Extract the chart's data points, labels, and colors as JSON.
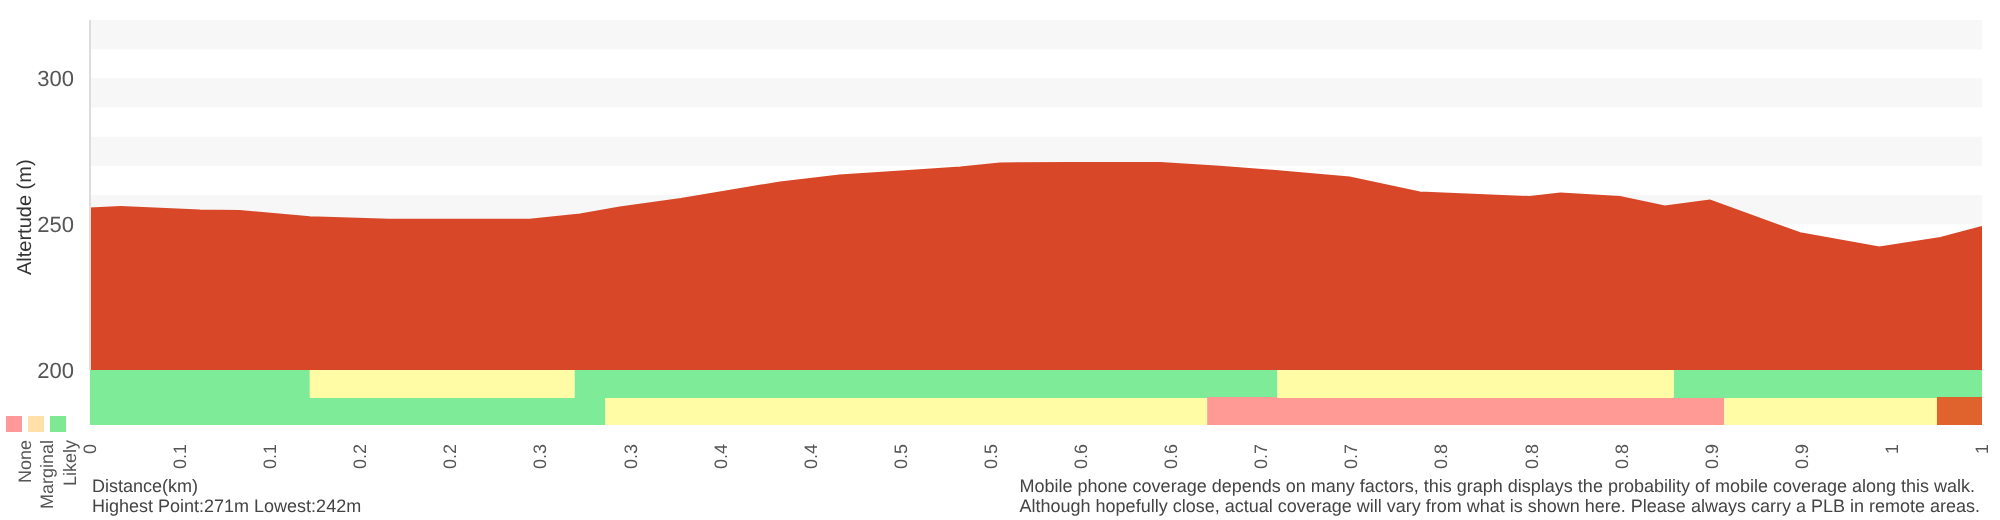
{
  "chart_data": [
    {
      "type": "area",
      "ylabel": "Altertude (m)",
      "xlim": [
        0,
        1.05
      ],
      "ylim": [
        200,
        320
      ],
      "yticks": [
        200,
        250,
        300
      ],
      "tick_labels": "y",
      "grid": false,
      "legend": false,
      "bands": [
        {
          "axis": "y",
          "from": 250,
          "to": 260,
          "color": "#f7f7f7"
        },
        {
          "axis": "y",
          "from": 270,
          "to": 280,
          "color": "#f7f7f7"
        },
        {
          "axis": "y",
          "from": 290,
          "to": 300,
          "color": "#f7f7f7"
        },
        {
          "axis": "y",
          "from": 310,
          "to": 320,
          "color": "#f7f7f7"
        }
      ],
      "x": [
        0,
        0.017,
        0.061,
        0.083,
        0.122,
        0.166,
        0.244,
        0.272,
        0.294,
        0.328,
        0.361,
        0.383,
        0.416,
        0.45,
        0.483,
        0.505,
        0.544,
        0.594,
        0.627,
        0.661,
        0.699,
        0.738,
        0.799,
        0.816,
        0.849,
        0.874,
        0.899,
        0.949,
        0.993,
        1.027,
        1.05
      ],
      "series": [
        {
          "color": "#d84727",
          "values": [
            255.4,
            255.9,
            254.7,
            254.5,
            252.4,
            251.5,
            251.5,
            253.3,
            255.7,
            258.6,
            262.1,
            264.3,
            266.7,
            268.1,
            269.4,
            270.8,
            271,
            271,
            269.7,
            268.1,
            266,
            260.9,
            259.3,
            260.5,
            259.3,
            256.1,
            258.1,
            246.9,
            242,
            245.3,
            249
          ]
        }
      ]
    },
    {
      "type": "bar",
      "orientation": "horizontal",
      "stacked": true,
      "categories": [
        null,
        null
      ],
      "xlabel": "Distance(km)",
      "xlim": [
        0,
        1.05
      ],
      "tick_labels": "x",
      "legend": false,
      "xticks": [
        {
          "value": 0,
          "label": "0"
        },
        {
          "value": 0.05,
          "label": "0.1"
        },
        {
          "value": 0.1,
          "label": "0.1"
        },
        {
          "value": 0.15,
          "label": "0.2"
        },
        {
          "value": 0.2,
          "label": "0.2"
        },
        {
          "value": 0.25,
          "label": "0.3"
        },
        {
          "value": 0.3,
          "label": "0.3"
        },
        {
          "value": 0.35,
          "label": "0.4"
        },
        {
          "value": 0.4,
          "label": "0.4"
        },
        {
          "value": 0.45,
          "label": "0.5"
        },
        {
          "value": 0.5,
          "label": "0.5"
        },
        {
          "value": 0.55,
          "label": "0.6"
        },
        {
          "value": 0.6,
          "label": "0.6"
        },
        {
          "value": 0.65,
          "label": "0.7"
        },
        {
          "value": 0.7,
          "label": "0.7"
        },
        {
          "value": 0.75,
          "label": "0.8"
        },
        {
          "value": 0.8,
          "label": "0.8"
        },
        {
          "value": 0.85,
          "label": "0.8"
        },
        {
          "value": 0.9,
          "label": "0.9"
        },
        {
          "value": 0.95,
          "label": "0.9"
        },
        {
          "value": 1.0,
          "label": "1"
        },
        {
          "value": 1.05,
          "label": "1"
        }
      ],
      "series": [
        {
          "values": [
            0.122,
            0.286
          ],
          "colors": [
            "#7deb98",
            "#7deb98"
          ]
        },
        {
          "values": [
            0.147,
            0.334
          ],
          "colors": [
            "#fffca5",
            "#fffca5"
          ]
        },
        {
          "values": [
            0.39,
            0.287
          ],
          "colors": [
            "#7deb98",
            "#ff9a94"
          ]
        },
        {
          "values": [
            0.22,
            0.118
          ],
          "colors": [
            "#fffca5",
            "#fffca5"
          ]
        },
        {
          "values": [
            0.171,
            0.025
          ],
          "colors": [
            "#7deb98",
            "#e0622c"
          ]
        }
      ],
      "annotations": [
        "None",
        "Marginal",
        "Likely",
        "Highest Point:271m Lowest:242m",
        "Mobile phone coverage depends on many factors, this graph displays the probability of mobile coverage along this walk.",
        "Although hopefully close, actual coverage will vary from what is shown here. Please always carry a PLB in remote areas."
      ]
    }
  ]
}
